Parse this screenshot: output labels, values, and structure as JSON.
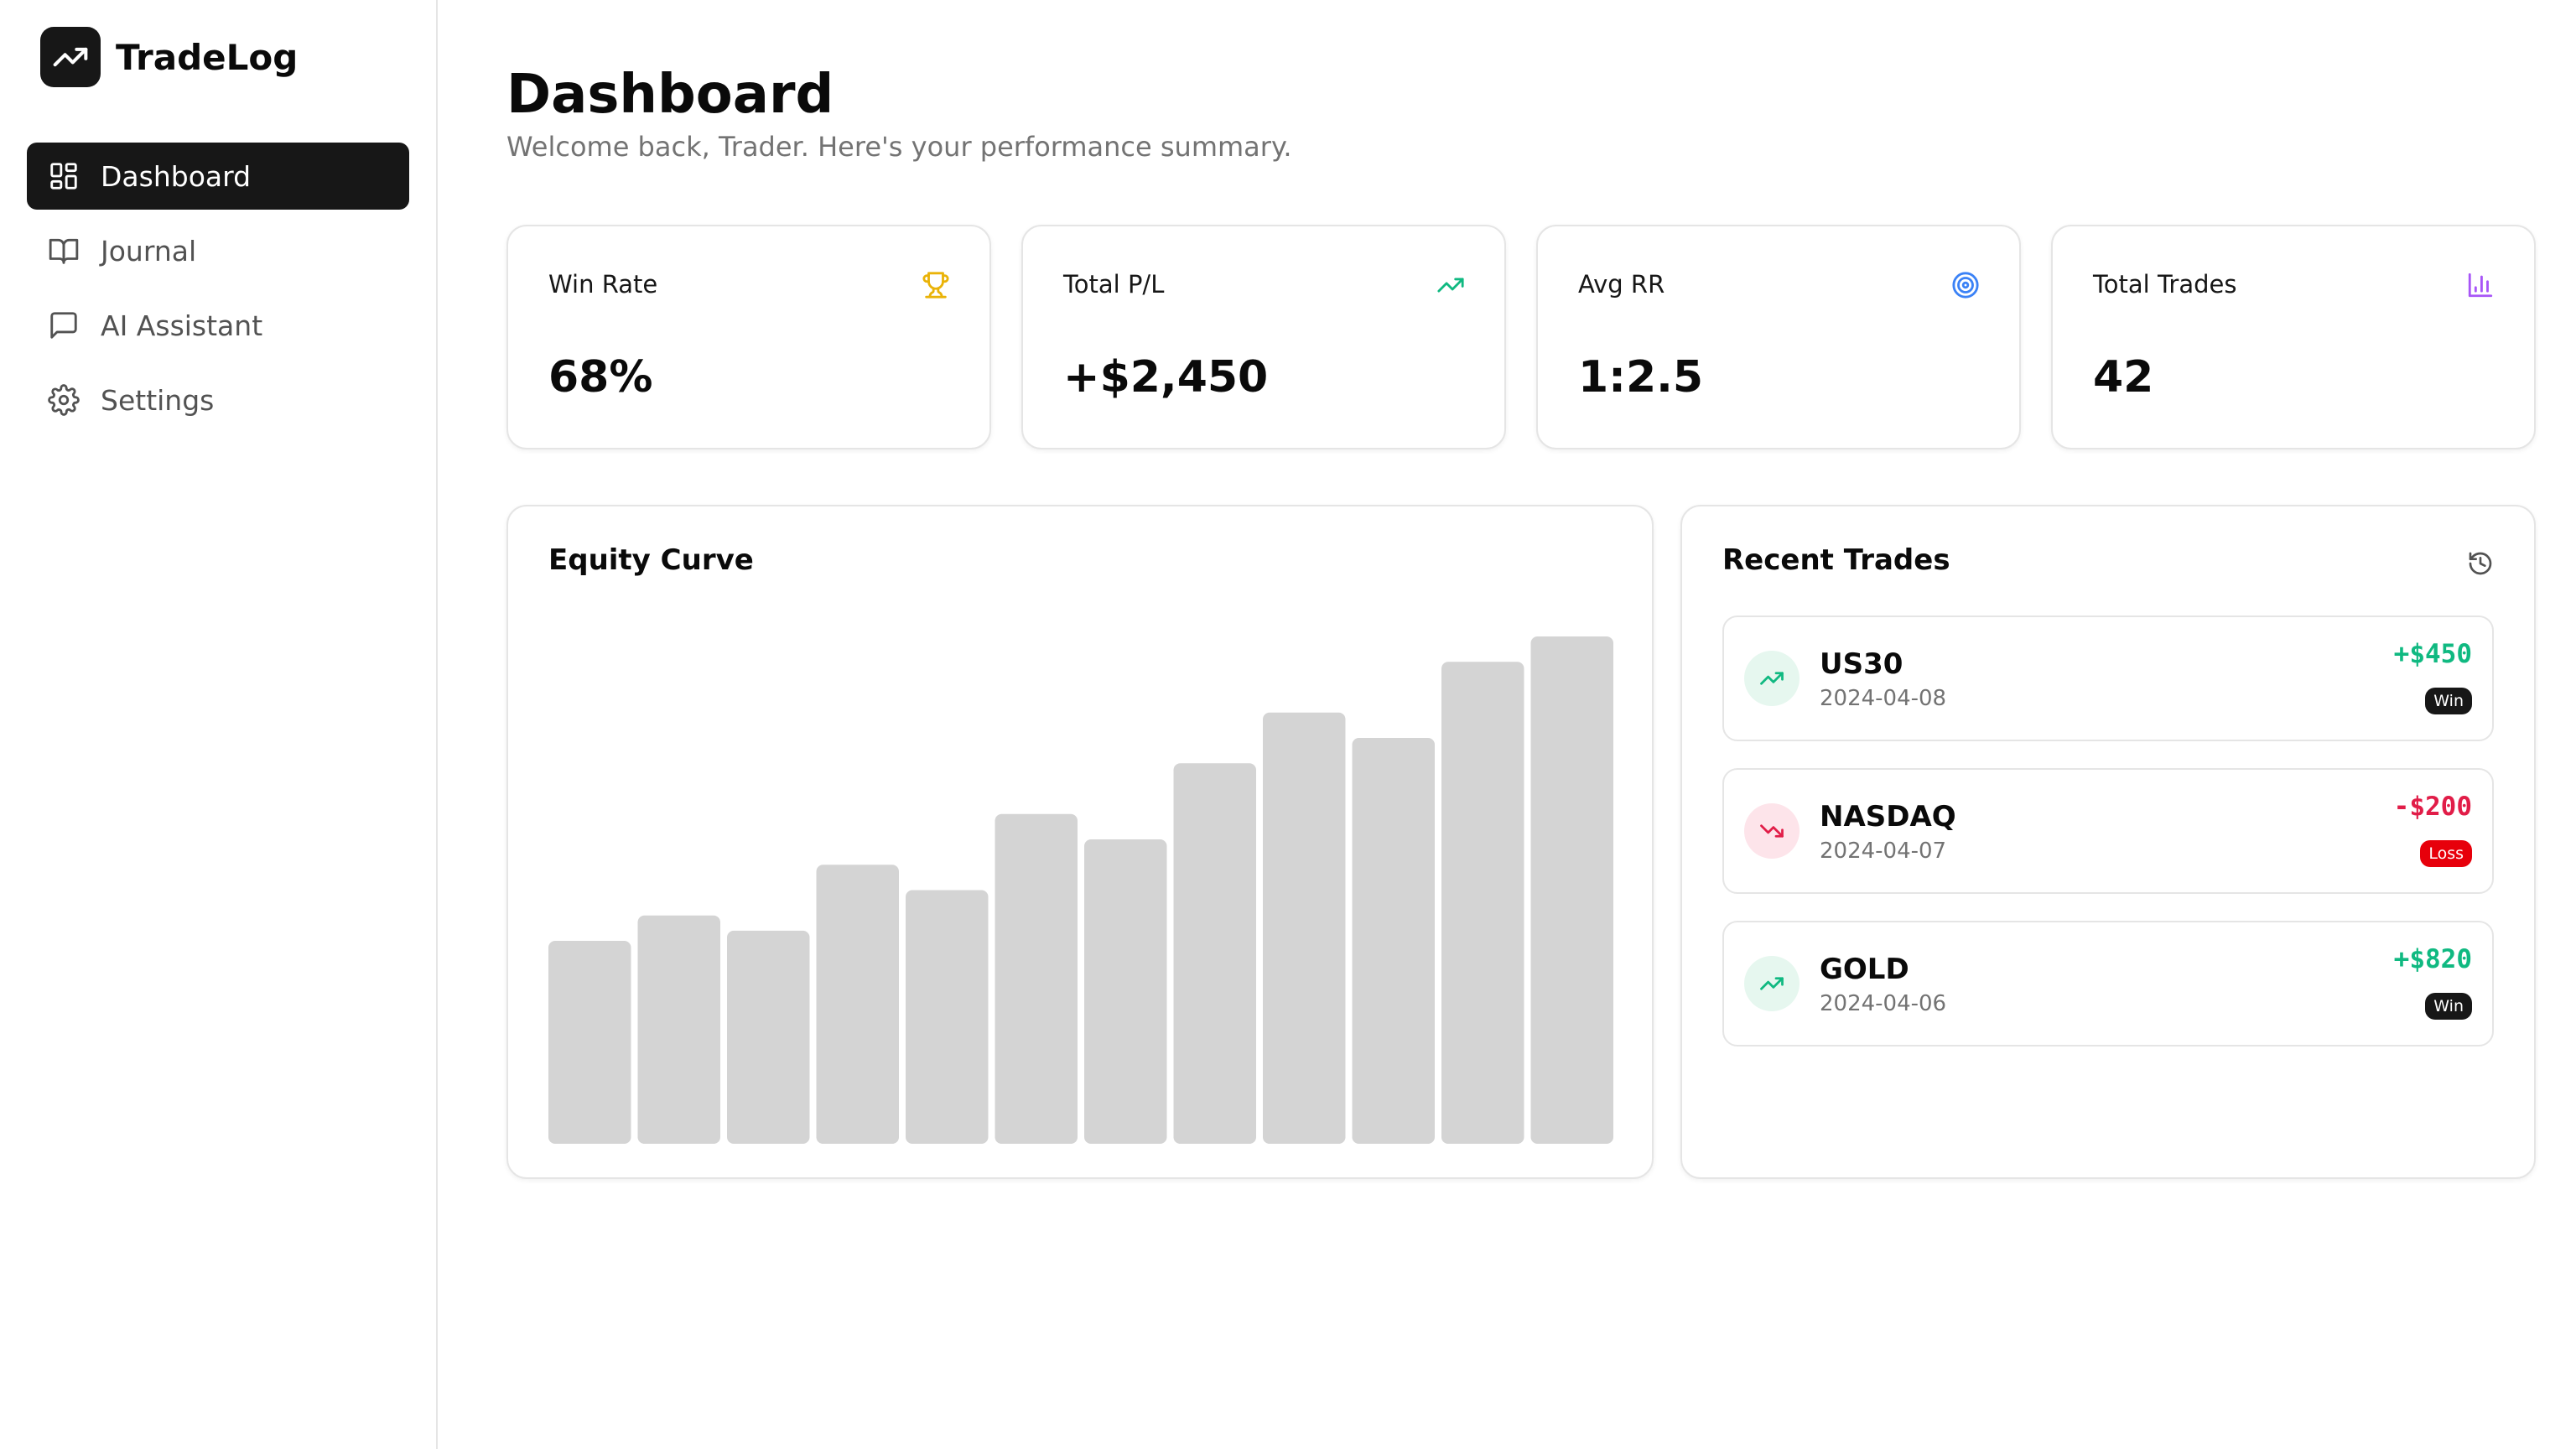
{
  "app": {
    "name": "TradeLog",
    "logo_icon": "trending-up-icon"
  },
  "sidebar": {
    "items": [
      {
        "label": "Dashboard",
        "icon": "layout-dashboard-icon",
        "active": true
      },
      {
        "label": "Journal",
        "icon": "book-open-icon",
        "active": false
      },
      {
        "label": "AI Assistant",
        "icon": "message-square-icon",
        "active": false
      },
      {
        "label": "Settings",
        "icon": "gear-icon",
        "active": false
      }
    ]
  },
  "header": {
    "title": "Dashboard",
    "subtitle": "Welcome back, Trader. Here's your performance summary."
  },
  "stats": [
    {
      "label": "Win Rate",
      "value": "68%",
      "icon": "trophy-icon",
      "color": "#eab308"
    },
    {
      "label": "Total P/L",
      "value": "+$2,450",
      "icon": "trending-up-icon",
      "color": "#10b981"
    },
    {
      "label": "Avg RR",
      "value": "1:2.5",
      "icon": "target-icon",
      "color": "#3b82f6"
    },
    {
      "label": "Total Trades",
      "value": "42",
      "icon": "bar-chart-icon",
      "color": "#a855f7"
    }
  ],
  "equity": {
    "title": "Equity Curve"
  },
  "chart_data": {
    "type": "bar",
    "values": [
      40,
      45,
      42,
      55,
      50,
      65,
      60,
      75,
      85,
      80,
      95,
      100
    ],
    "ylim": [
      0,
      100
    ],
    "bar_color": "#d4d4d4"
  },
  "recent": {
    "title": "Recent Trades",
    "icon": "history-icon",
    "trades": [
      {
        "symbol": "US30",
        "date": "2024-04-08",
        "amount": "+$450",
        "result": "Win",
        "type": "win"
      },
      {
        "symbol": "NASDAQ",
        "date": "2024-04-07",
        "amount": "-$200",
        "result": "Loss",
        "type": "loss"
      },
      {
        "symbol": "GOLD",
        "date": "2024-04-06",
        "amount": "+$820",
        "result": "Win",
        "type": "win"
      }
    ]
  }
}
